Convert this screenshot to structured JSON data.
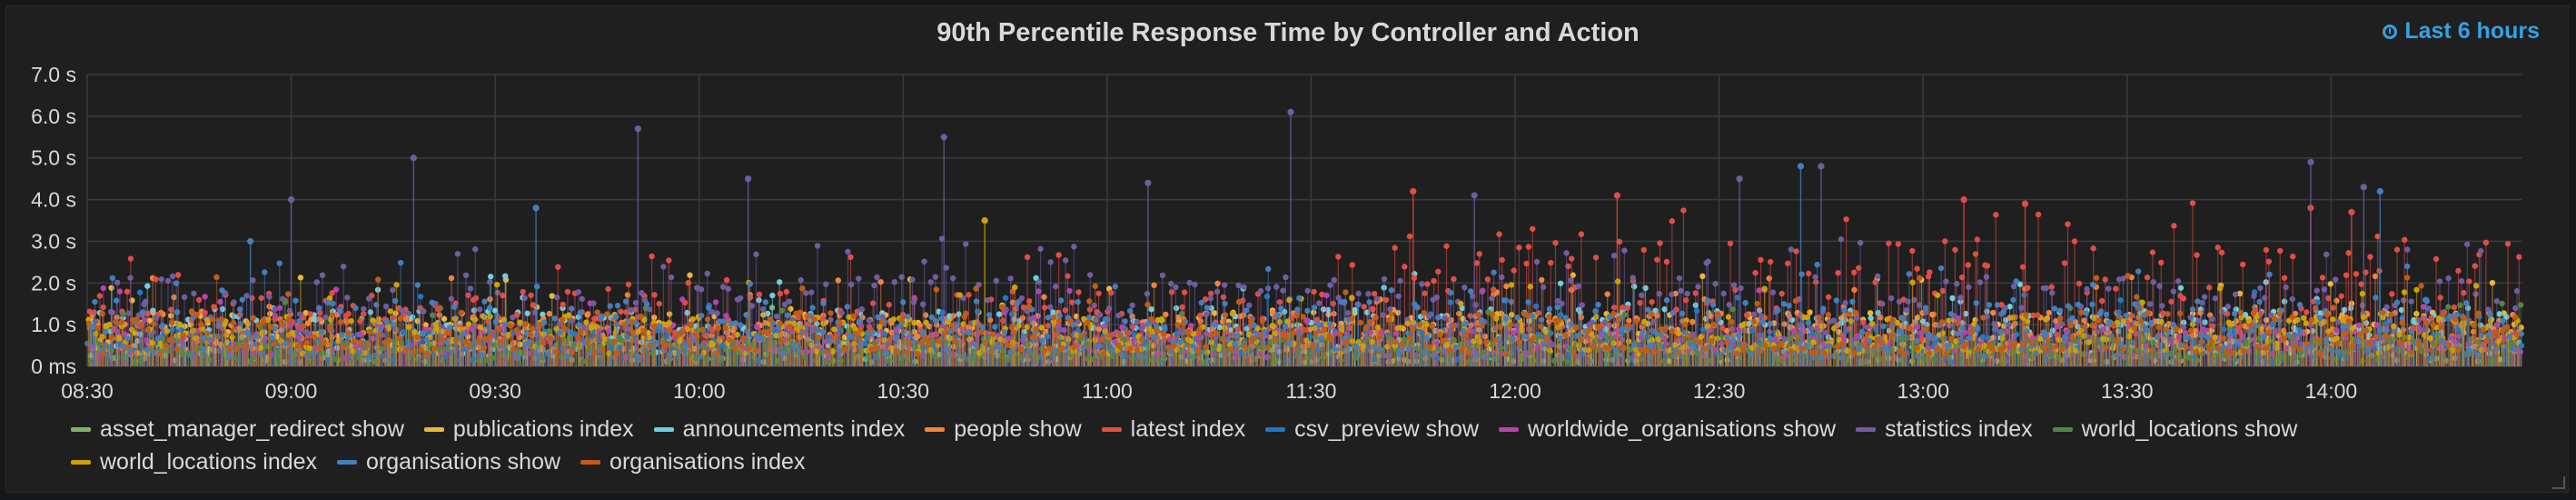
{
  "panel": {
    "title": "90th Percentile Response Time by Controller and Action",
    "time_range": "Last 6 hours",
    "time_icon": "clock-icon"
  },
  "chart_data": {
    "type": "scatter",
    "title": "90th Percentile Response Time by Controller and Action",
    "xlabel": "",
    "ylabel": "",
    "y_unit": "s",
    "ylim": [
      0,
      7
    ],
    "y_ticks": [
      "0 ms",
      "1.0 s",
      "2.0 s",
      "3.0 s",
      "4.0 s",
      "5.0 s",
      "6.0 s",
      "7.0 s"
    ],
    "x_ticks": [
      "08:30",
      "09:00",
      "09:30",
      "10:00",
      "10:30",
      "11:00",
      "11:30",
      "12:00",
      "12:30",
      "13:00",
      "13:30",
      "14:00"
    ],
    "x_range": [
      "08:30",
      "14:28"
    ],
    "grid": true,
    "legend_position": "bottom",
    "series": [
      {
        "name": "asset_manager_redirect show",
        "color": "#7eb26d",
        "typical": [
          0.1,
          0.6
        ]
      },
      {
        "name": "publications index",
        "color": "#eab839",
        "typical": [
          0.4,
          1.3
        ]
      },
      {
        "name": "announcements index",
        "color": "#6ed0e0",
        "typical": [
          0.3,
          1.4
        ]
      },
      {
        "name": "people show",
        "color": "#ef843c",
        "typical": [
          0.4,
          1.3
        ]
      },
      {
        "name": "latest index",
        "color": "#e24d42",
        "typical": [
          0.6,
          2.4
        ],
        "peaks": [
          [
            11.75,
            4.2
          ],
          [
            12.25,
            4.1
          ],
          [
            13.1,
            4.0
          ],
          [
            13.25,
            3.9
          ],
          [
            13.95,
            3.8
          ],
          [
            14.05,
            3.7
          ]
        ]
      },
      {
        "name": "csv_preview show",
        "color": "#1f78c1",
        "typical": [
          0.1,
          0.9
        ]
      },
      {
        "name": "worldwide_organisations show",
        "color": "#ba43a9",
        "typical": [
          0.2,
          1.0
        ]
      },
      {
        "name": "statistics index",
        "color": "#705da0",
        "typical": [
          0.5,
          2.2
        ],
        "peaks": [
          [
            9.0,
            4.0
          ],
          [
            9.3,
            5.0
          ],
          [
            9.85,
            5.7
          ],
          [
            10.12,
            4.5
          ],
          [
            10.6,
            5.5
          ],
          [
            11.1,
            4.4
          ],
          [
            11.45,
            6.1
          ],
          [
            11.9,
            4.1
          ],
          [
            12.55,
            4.5
          ],
          [
            12.75,
            4.8
          ],
          [
            13.95,
            4.9
          ],
          [
            14.08,
            4.3
          ]
        ]
      },
      {
        "name": "world_locations show",
        "color": "#508642",
        "typical": [
          0.1,
          0.7
        ]
      },
      {
        "name": "world_locations index",
        "color": "#cca300",
        "typical": [
          0.3,
          1.2
        ],
        "peaks": [
          [
            10.7,
            3.5
          ]
        ]
      },
      {
        "name": "organisations show",
        "color": "#447ebc",
        "typical": [
          0.2,
          1.6
        ],
        "peaks": [
          [
            8.9,
            3.0
          ],
          [
            9.6,
            3.8
          ],
          [
            12.7,
            4.8
          ],
          [
            14.12,
            4.2
          ]
        ]
      },
      {
        "name": "organisations index",
        "color": "#c15c17",
        "typical": [
          0.3,
          1.3
        ]
      }
    ]
  }
}
